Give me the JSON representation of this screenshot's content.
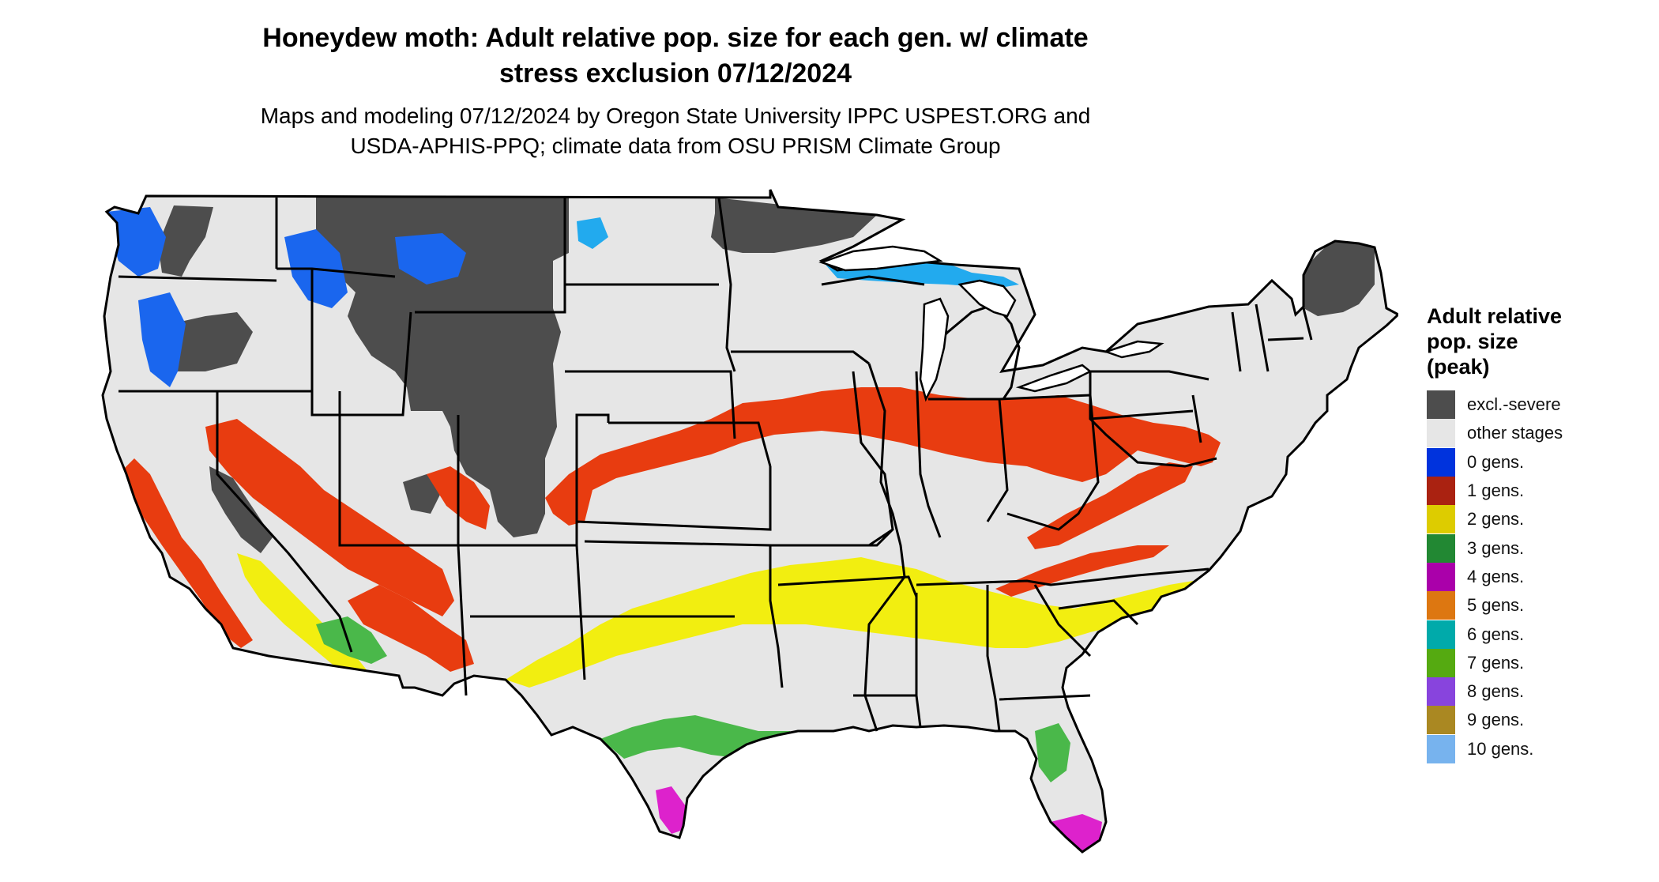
{
  "title_line1": "Honeydew moth: Adult relative pop. size for each gen. w/ climate",
  "title_line2": "stress exclusion 07/12/2024",
  "subtitle_line1": "Maps and modeling 07/12/2024 by Oregon State University IPPC USPEST.ORG and",
  "subtitle_line2": "USDA-APHIS-PPQ; climate data from OSU PRISM Climate Group",
  "legend": {
    "title_lines": [
      "Adult relative",
      "pop. size",
      "(peak)"
    ],
    "items": [
      {
        "label": "excl.-severe",
        "color": "#4d4d4d"
      },
      {
        "label": "other stages",
        "color": "#e6e6e6"
      },
      {
        "label": "0 gens.",
        "color": "#0033dd"
      },
      {
        "label": "1 gens.",
        "color": "#aa2211"
      },
      {
        "label": "2 gens.",
        "color": "#ddcc00"
      },
      {
        "label": "3 gens.",
        "color": "#228833"
      },
      {
        "label": "4 gens.",
        "color": "#aa00aa"
      },
      {
        "label": "5 gens.",
        "color": "#dd7711"
      },
      {
        "label": "6 gens.",
        "color": "#00aaaa"
      },
      {
        "label": "7 gens.",
        "color": "#55aa11"
      },
      {
        "label": "8 gens.",
        "color": "#8844dd"
      },
      {
        "label": "9 gens.",
        "color": "#aa8822"
      },
      {
        "label": "10 gens.",
        "color": "#77b3ee"
      }
    ]
  },
  "map_colors": {
    "excluded": "#4d4d4d",
    "background": "#e6e6e6",
    "blue_0gen": "#1a66ee",
    "cyan_high": "#22aaee",
    "red_1gen": "#e83c10",
    "yellow_2gen": "#f2ee10",
    "green_3gen": "#4ab84a",
    "magenta_4gen": "#dd22cc",
    "outline": "#000000"
  }
}
